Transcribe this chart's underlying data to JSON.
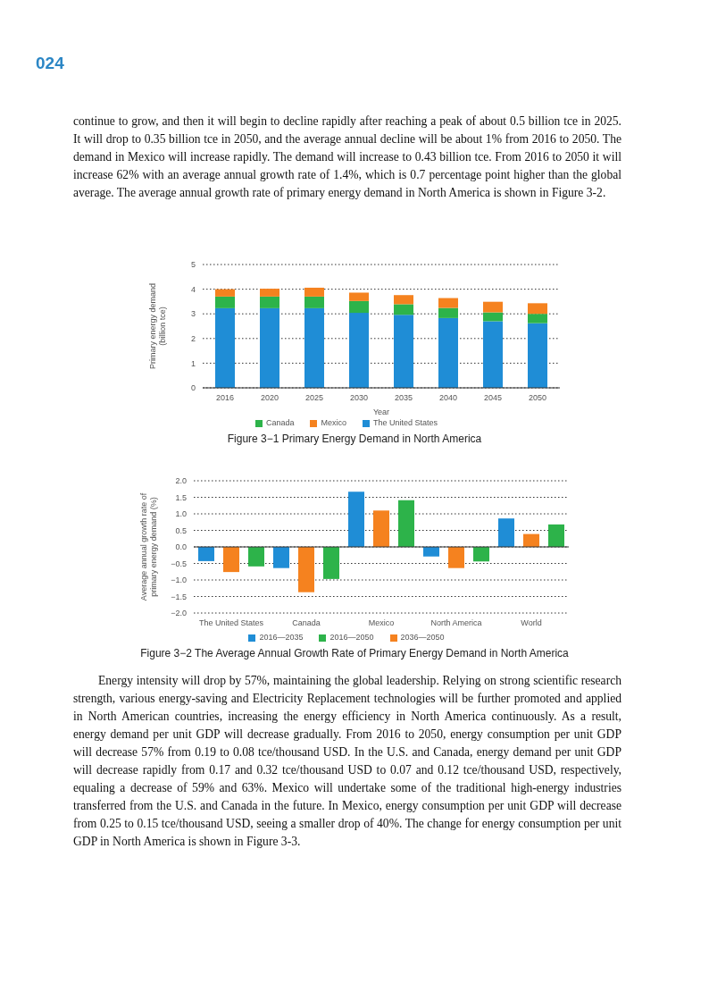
{
  "chart_data": [
    {
      "type": "bar",
      "stacked": true,
      "title": "Figure 3−1   Primary Energy Demand in North America",
      "xlabel": "Year",
      "ylabel": "Primary energy demand (billion tce)",
      "annotations": [
        "024",
        "continue to grow, and then it will begin to decline rapidly after reaching a peak of about 0.5 billion tce in 2025. It will drop to 0.35 billion tce in 2050, and the average annual decline will be about 1% from 2016 to 2050. The demand in Mexico will increase rapidly. The demand will increase to 0.43 billion tce. From 2016 to 2050 it will increase 62% with an average annual growth rate of 1.4%, which is 0.7 percentage point higher than the global average. The average annual growth rate of primary energy demand in North America is shown in Figure 3-2."
      ],
      "categories": [
        "2016",
        "2020",
        "2025",
        "2030",
        "2035",
        "2040",
        "2045",
        "2050"
      ],
      "series": [
        {
          "name": "The United States",
          "color": "#1f8dd6",
          "values": [
            3.23,
            3.23,
            3.23,
            3.04,
            2.96,
            2.83,
            2.7,
            2.62
          ]
        },
        {
          "name": "Canada",
          "color": "#2db34a",
          "values": [
            0.47,
            0.47,
            0.47,
            0.48,
            0.43,
            0.41,
            0.36,
            0.38
          ]
        },
        {
          "name": "Mexico",
          "color": "#f5821f",
          "values": [
            0.3,
            0.32,
            0.36,
            0.34,
            0.37,
            0.4,
            0.43,
            0.43
          ]
        }
      ],
      "ylim": [
        0,
        5
      ],
      "yticks": [
        0,
        1,
        2,
        3,
        4,
        5
      ],
      "grid": "y",
      "legend": "bottom"
    },
    {
      "type": "bar",
      "title": "Figure 3−2   The Average Annual Growth Rate of Primary Energy Demand in North America",
      "ylabel": "Average annual growth rate of primary energy demand (%)",
      "annotations": [
        "Energy intensity will drop by 57%, maintaining the global leadership. Relying on strong scientific research strength, various energy-saving and Electricity Replacement technologies will be further promoted and applied in North American countries, increasing the energy efficiency in North America continuously. As a result, energy demand per unit GDP will decrease gradually. From 2016 to 2050, energy consumption per unit GDP will decrease 57% from 0.19 to 0.08 tce/thousand USD. In the U.S. and Canada, energy demand per unit GDP will decrease rapidly from 0.17 and 0.32 tce/thousand USD to 0.07 and 0.12 tce/thousand USD, respectively, equaling a decrease of 59% and 63%. Mexico will undertake some of the traditional high-energy industries transferred from the U.S. and Canada in the future. In Mexico, energy consumption per unit GDP will decrease from 0.25 to 0.15 tce/thousand USD, seeing a smaller drop of 40%. The change for energy consumption per unit GDP in North America is shown in Figure 3-3."
      ],
      "categories": [
        "The United States",
        "Canada",
        "Mexico",
        "North America",
        "World"
      ],
      "series": [
        {
          "name": "2016—2035",
          "color": "#1f8dd6",
          "values": [
            -0.43,
            -0.64,
            1.67,
            -0.29,
            0.86
          ]
        },
        {
          "name": "2036—2050",
          "color": "#f5821f",
          "values": [
            -0.76,
            -1.37,
            1.1,
            -0.64,
            0.39
          ]
        },
        {
          "name": "2016—2050",
          "color": "#2db34a",
          "values": [
            -0.59,
            -0.97,
            1.41,
            -0.44,
            0.68
          ]
        }
      ],
      "ylim": [
        -2,
        2
      ],
      "yticks": [
        {
          "value": -2,
          "label": "−2.0"
        },
        {
          "value": -1.5,
          "label": "−1.5"
        },
        {
          "value": -1,
          "label": "−1.0"
        },
        {
          "value": -0.5,
          "label": "−0.5"
        },
        {
          "value": 0,
          "label": "0.0"
        },
        {
          "value": 0.5,
          "label": "0.5"
        },
        {
          "value": 1,
          "label": "1.0"
        },
        {
          "value": 1.5,
          "label": "1.5"
        },
        {
          "value": 2,
          "label": "2.0"
        }
      ],
      "grid": "y",
      "legend": "bottom"
    }
  ]
}
